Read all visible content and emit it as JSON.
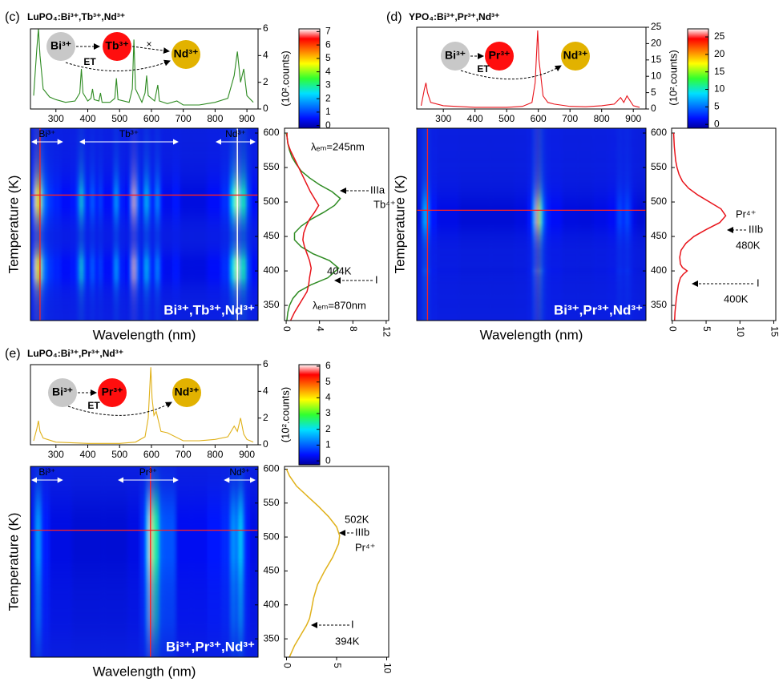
{
  "chart_data": [
    {
      "type": "heatmap",
      "label": "(c)",
      "title": "LuPO₄:Bi³⁺,Tb³⁺,Nd³⁺",
      "spectrum": {
        "ylabel": "(10².counts)",
        "color": "#2e8b22",
        "x": [
          230,
          240,
          245,
          250,
          260,
          280,
          300,
          330,
          360,
          375,
          380,
          385,
          400,
          410,
          415,
          420,
          435,
          440,
          445,
          470,
          485,
          490,
          495,
          530,
          540,
          545,
          550,
          570,
          580,
          585,
          590,
          610,
          620,
          625,
          650,
          680,
          700,
          750,
          800,
          840,
          860,
          870,
          880,
          890,
          900,
          920
        ],
        "values": [
          1.0,
          4.5,
          6.0,
          4.0,
          1.5,
          0.9,
          0.7,
          0.5,
          0.6,
          1.2,
          3.0,
          1.2,
          0.6,
          0.8,
          1.5,
          0.7,
          0.6,
          1.2,
          0.5,
          0.5,
          0.8,
          2.3,
          0.7,
          0.5,
          1.5,
          5.2,
          1.5,
          0.5,
          1.2,
          2.5,
          1.0,
          0.6,
          1.8,
          0.6,
          0.4,
          0.6,
          0.3,
          0.3,
          0.5,
          0.8,
          2.5,
          4.3,
          2.0,
          3.0,
          1.0,
          0.5
        ],
        "xlim": [
          220,
          935
        ],
        "xticks": [
          300,
          400,
          500,
          600,
          700,
          800,
          900
        ],
        "ylim": [
          0,
          6
        ],
        "yticks": [
          0,
          2,
          4,
          6
        ]
      },
      "colorbar": {
        "ylim": [
          -0.2,
          7.2
        ],
        "yticks": [
          0,
          1,
          2,
          3,
          4,
          5,
          6,
          7
        ]
      },
      "heatmap": {
        "xlabel": "Wavelength (nm)",
        "ylabel": "Temperature (K)",
        "ylim": [
          328,
          607
        ],
        "yticks": [
          350,
          400,
          450,
          500,
          550,
          600
        ],
        "crosshair": {
          "wavelength": 250,
          "temperature": 510
        },
        "marker_line": 870,
        "range_labels": [
          {
            "text": "Bi³⁺",
            "range": [
              225,
              320
            ]
          },
          {
            "text": "Tb³⁺",
            "range": [
              376,
              683
            ]
          },
          {
            "text": "Nd³⁺",
            "range": [
              804,
              925
            ]
          }
        ],
        "label": "Bi³⁺,Tb³⁺,Nd³⁺"
      },
      "glow": {
        "temperature": [
          320,
          330,
          340,
          350,
          360,
          370,
          380,
          390,
          404,
          415,
          425,
          435,
          445,
          455,
          465,
          475,
          485,
          495,
          505,
          515,
          525,
          535,
          545,
          555,
          565,
          575,
          585,
          595,
          600
        ],
        "series": [
          {
            "name": "λₑₘ=245nm",
            "color": "#2e8b22",
            "values": [
              0,
              0.1,
              0.2,
              0.4,
              0.8,
              1.5,
              3.0,
              5.0,
              6.3,
              5.2,
              3.2,
              1.8,
              1.0,
              1.0,
              1.8,
              3.0,
              4.5,
              5.8,
              6.5,
              5.5,
              4.0,
              2.8,
              1.8,
              1.2,
              0.7,
              0.4,
              0.2,
              0.1,
              0
            ]
          },
          {
            "name": "λₑₘ=870nm",
            "color": "#e8131a",
            "values": [
              0.3,
              0.6,
              1.0,
              1.5,
              2.0,
              2.5,
              2.7,
              2.8,
              3.0,
              2.8,
              2.5,
              2.2,
              2.0,
              2.1,
              2.4,
              2.8,
              3.4,
              3.9,
              3.4,
              2.9,
              2.5,
              2.1,
              1.7,
              1.3,
              0.9,
              0.5,
              0.2,
              0.1,
              0.1
            ]
          }
        ],
        "xlim": [
          -0.2,
          12.3
        ],
        "xticks": [
          0,
          4,
          8,
          12
        ]
      },
      "scheme": {
        "nodes": [
          "Bi³⁺",
          "Tb³⁺",
          "Nd³⁺"
        ],
        "transfer": "ET",
        "blocked": "×"
      },
      "annotations": [
        "IIIa",
        "Tb⁴⁺",
        "404K",
        "I"
      ]
    },
    {
      "type": "heatmap",
      "label": "(d)",
      "title": "YPO₄:Bi³⁺,Pr³⁺,Nd³⁺",
      "spectrum": {
        "ylabel": "(10².counts)",
        "color": "#e8131a",
        "x": [
          230,
          240,
          245,
          250,
          260,
          300,
          400,
          500,
          550,
          580,
          590,
          598,
          602,
          608,
          615,
          630,
          650,
          700,
          750,
          800,
          840,
          860,
          870,
          880,
          890,
          900,
          920
        ],
        "values": [
          1,
          6,
          8,
          5,
          2,
          1,
          0.5,
          0.5,
          0.8,
          2,
          8,
          24,
          15,
          10,
          4,
          2,
          1.5,
          0.8,
          0.7,
          1,
          1.5,
          3.5,
          2,
          4,
          2.5,
          1,
          0.5
        ],
        "xlim": [
          216,
          940
        ],
        "xticks": [
          300,
          400,
          500,
          600,
          700,
          800,
          900
        ],
        "ylim": [
          0,
          25
        ],
        "yticks": [
          0,
          5,
          10,
          15,
          20,
          25
        ]
      },
      "colorbar": {
        "ylim": [
          -1.1,
          27.3
        ],
        "yticks": [
          0,
          5,
          10,
          15,
          20,
          25
        ]
      },
      "heatmap": {
        "xlabel": "Wavelength (nm)",
        "ylabel": "Temperature (K)",
        "ylim": [
          328,
          607
        ],
        "yticks": [
          350,
          400,
          450,
          500,
          550,
          600
        ],
        "crosshair": {
          "wavelength": 250,
          "temperature": 488
        },
        "range_labels": [],
        "label": "Bi³⁺,Pr³⁺,Nd³⁺"
      },
      "glow": {
        "temperature": [
          320,
          340,
          360,
          380,
          390,
          395,
          400,
          405,
          410,
          420,
          430,
          440,
          450,
          460,
          470,
          480,
          490,
          500,
          510,
          520,
          530,
          540,
          550,
          560,
          580,
          600
        ],
        "series": [
          {
            "color": "#e8131a",
            "values": [
              0.3,
              0.4,
              0.6,
              0.9,
              1.2,
              1.6,
              2.2,
              1.5,
              1.2,
              1.1,
              1.3,
              2.0,
              3.2,
              5.0,
              7.0,
              7.9,
              7.2,
              5.5,
              3.8,
              2.4,
              1.5,
              1.0,
              0.7,
              0.5,
              0.3,
              0.2
            ]
          }
        ],
        "xlim": [
          -0.1,
          15.3
        ],
        "xticks": [
          0,
          5,
          10,
          15
        ]
      },
      "scheme": {
        "nodes": [
          "Bi³⁺",
          "Pr³⁺",
          "Nd³⁺"
        ],
        "transfer": "ET"
      },
      "annotations": [
        "Pr⁴⁺",
        "IIIb",
        "480K",
        "I",
        "400K"
      ]
    },
    {
      "type": "heatmap",
      "label": "(e)",
      "title": "LuPO₄:Bi³⁺,Pr³⁺,Nd³⁺",
      "spectrum": {
        "ylabel": "(10².counts)",
        "color": "#e0b11a",
        "x": [
          230,
          240,
          245,
          250,
          260,
          300,
          400,
          500,
          550,
          580,
          590,
          598,
          602,
          608,
          615,
          630,
          650,
          700,
          750,
          800,
          840,
          860,
          870,
          880,
          890,
          900,
          920
        ],
        "values": [
          0.3,
          1.2,
          1.8,
          1.0,
          0.5,
          0.2,
          0.1,
          0.1,
          0.2,
          0.6,
          2.0,
          5.8,
          3.5,
          2.2,
          2.5,
          1.0,
          0.9,
          0.3,
          0.3,
          0.4,
          0.6,
          1.4,
          1.0,
          2.0,
          0.8,
          0.4,
          0.2
        ],
        "xlim": [
          220,
          935
        ],
        "xticks": [
          300,
          400,
          500,
          600,
          700,
          800,
          900
        ],
        "ylim": [
          0,
          6
        ],
        "yticks": [
          0,
          2,
          4,
          6
        ]
      },
      "colorbar": {
        "ylim": [
          -0.25,
          6.1
        ],
        "yticks": [
          0,
          1,
          2,
          3,
          4,
          5,
          6
        ]
      },
      "heatmap": {
        "xlabel": "Wavelength (nm)",
        "ylabel": "Temperature (K)",
        "ylim": [
          323,
          604
        ],
        "yticks": [
          350,
          400,
          450,
          500,
          550,
          600
        ],
        "crosshair": {
          "wavelength": 597,
          "temperature": 510
        },
        "range_labels": [
          {
            "text": "Bi³⁺",
            "range": [
              225,
              320
            ]
          },
          {
            "text": "Pr³⁺",
            "range": [
              497,
              683
            ]
          },
          {
            "text": "Nd³⁺",
            "range": [
              830,
              925
            ]
          }
        ],
        "label": "Bi³⁺,Pr³⁺,Nd³⁺"
      },
      "glow": {
        "temperature": [
          310,
          320,
          330,
          340,
          350,
          360,
          370,
          380,
          394,
          410,
          430,
          450,
          470,
          490,
          502,
          515,
          530,
          545,
          560,
          575,
          590,
          600
        ],
        "series": [
          {
            "color": "#e0b11a",
            "values": [
              0,
              0.2,
              0.5,
              0.8,
              1.2,
              1.6,
              2.0,
              2.3,
              2.5,
              2.7,
              3.1,
              3.8,
              4.6,
              5.2,
              5.3,
              5.0,
              4.2,
              3.2,
              2.1,
              1.0,
              0.3,
              0
            ]
          }
        ],
        "xlim": [
          -0.2,
          10.2
        ],
        "xticks": [
          0,
          5,
          10
        ]
      },
      "scheme": {
        "nodes": [
          "Bi³⁺",
          "Pr³⁺",
          "Nd³⁺"
        ],
        "transfer": "ET"
      },
      "annotations": [
        "502K",
        "IIIb",
        "Pr⁴⁺",
        "I",
        "394K"
      ]
    }
  ]
}
